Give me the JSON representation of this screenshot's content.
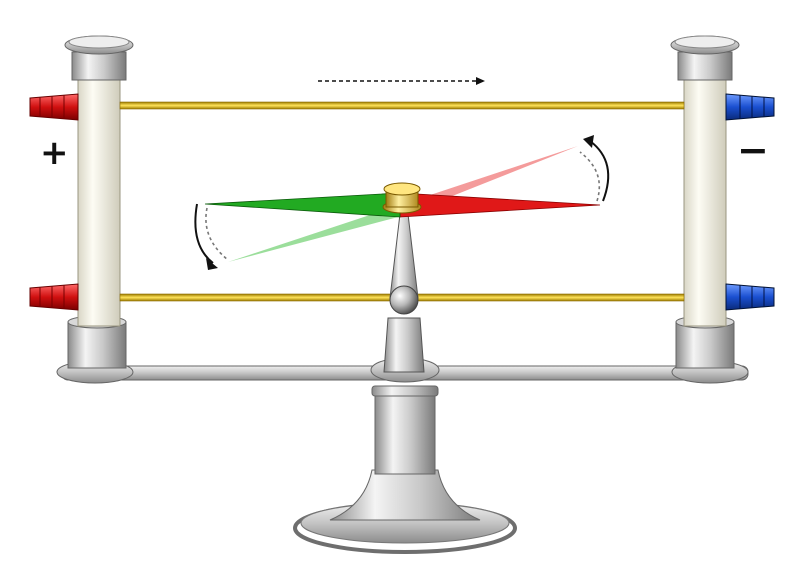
{
  "labels": {
    "positive_terminal": "+",
    "negative_terminal": "−"
  },
  "colors": {
    "wire": "#e0b400",
    "compass_north": "#e01818",
    "compass_south": "#22aa22",
    "terminal_positive": "#d01010",
    "terminal_negative": "#1a4fd0",
    "metal": "#c8c8c8"
  },
  "icons": {
    "current_direction": "dashed-arrow-right",
    "rotation_indicator": "curved-arrow"
  }
}
